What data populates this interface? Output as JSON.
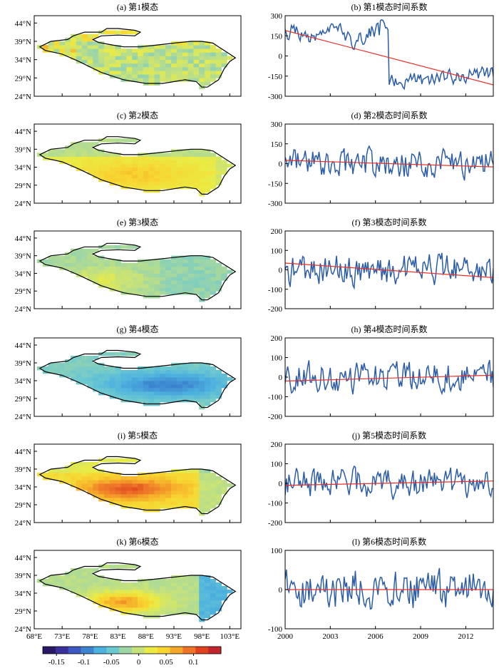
{
  "map_lat_ticks": [
    "24°N",
    "29°N",
    "34°N",
    "39°N",
    "44°N"
  ],
  "map_lon_ticks": [
    "68°E",
    "73°E",
    "78°E",
    "83°E",
    "88°E",
    "93°E",
    "98°E",
    "103°E"
  ],
  "ts_x_ticks": [
    "2000",
    "2003",
    "2006",
    "2009",
    "2012"
  ],
  "colorbar": {
    "ticks": [
      "-0.15",
      "-0.1",
      "-0.05",
      "0",
      "0.05",
      "0.1"
    ],
    "tick_values": [
      -0.15,
      -0.1,
      -0.05,
      0,
      0.05,
      0.1
    ],
    "range": [
      -0.175,
      0.15
    ],
    "colors": [
      "#2a1863",
      "#3b2f9b",
      "#3f58c2",
      "#3c84d0",
      "#4db1df",
      "#6cc8d0",
      "#9fd6a5",
      "#c6e27b",
      "#eaec44",
      "#f8d531",
      "#f5a92a",
      "#ee7528",
      "#e0421f",
      "#c0262a"
    ]
  },
  "chart_data": [
    {
      "type": "heatmap",
      "title": "(a) 第1模态",
      "x_range": [
        68,
        105
      ],
      "y_range": [
        24,
        46
      ],
      "pattern": 1
    },
    {
      "type": "line",
      "title": "(b) 第1模态时间系数",
      "ylim": [
        -300,
        300
      ],
      "yticks": [
        -300,
        -150,
        0,
        150,
        300
      ],
      "x_range": [
        2000,
        2013.83
      ],
      "series_seed": 11,
      "level_early": 150,
      "level_late": -180,
      "amp": 50,
      "trend": [
        190,
        -215
      ]
    },
    {
      "type": "heatmap",
      "title": "(c) 第2模态",
      "x_range": [
        68,
        105
      ],
      "y_range": [
        24,
        46
      ],
      "pattern": 2
    },
    {
      "type": "line",
      "title": "(d) 第2模态时间系数",
      "ylim": [
        -300,
        300
      ],
      "yticks": [
        -300,
        -150,
        0,
        150,
        300
      ],
      "x_range": [
        2000,
        2013.83
      ],
      "series_seed": 22,
      "level_early": 0,
      "level_late": 0,
      "amp": 95,
      "trend": [
        25,
        -25
      ]
    },
    {
      "type": "heatmap",
      "title": "(e) 第3模态",
      "x_range": [
        68,
        105
      ],
      "y_range": [
        24,
        46
      ],
      "pattern": 3
    },
    {
      "type": "line",
      "title": "(f) 第3模态时间系数",
      "ylim": [
        -200,
        200
      ],
      "yticks": [
        -200,
        -100,
        0,
        100,
        200
      ],
      "x_range": [
        2000,
        2013.83
      ],
      "series_seed": 33,
      "level_early": 0,
      "level_late": 0,
      "amp": 70,
      "trend": [
        35,
        -40
      ]
    },
    {
      "type": "heatmap",
      "title": "(g) 第4模态",
      "x_range": [
        68,
        105
      ],
      "y_range": [
        24,
        46
      ],
      "pattern": 4
    },
    {
      "type": "line",
      "title": "(h) 第4模态时间系数",
      "ylim": [
        -200,
        200
      ],
      "yticks": [
        -200,
        -100,
        0,
        100,
        200
      ],
      "x_range": [
        2000,
        2013.83
      ],
      "series_seed": 44,
      "level_early": 0,
      "level_late": 0,
      "amp": 70,
      "trend": [
        -20,
        10
      ]
    },
    {
      "type": "heatmap",
      "title": "(i) 第5模态",
      "x_range": [
        68,
        105
      ],
      "y_range": [
        24,
        46
      ],
      "pattern": 5
    },
    {
      "type": "line",
      "title": "(j) 第5模态时间系数",
      "ylim": [
        -200,
        200
      ],
      "yticks": [
        -200,
        -100,
        0,
        100,
        200
      ],
      "x_range": [
        2000,
        2013.83
      ],
      "series_seed": 55,
      "level_early": 0,
      "level_late": 0,
      "amp": 65,
      "trend": [
        -10,
        12
      ]
    },
    {
      "type": "heatmap",
      "title": "(k) 第6模态",
      "x_range": [
        68,
        105
      ],
      "y_range": [
        24,
        46
      ],
      "pattern": 6
    },
    {
      "type": "line",
      "title": "(l) 第6模态时间系数",
      "ylim": [
        -100,
        100
      ],
      "yticks": [
        -100,
        0,
        100
      ],
      "x_range": [
        2000,
        2013.83
      ],
      "series_seed": 66,
      "level_early": 0,
      "level_late": 0,
      "amp": 45,
      "trend": [
        0,
        0
      ]
    }
  ]
}
